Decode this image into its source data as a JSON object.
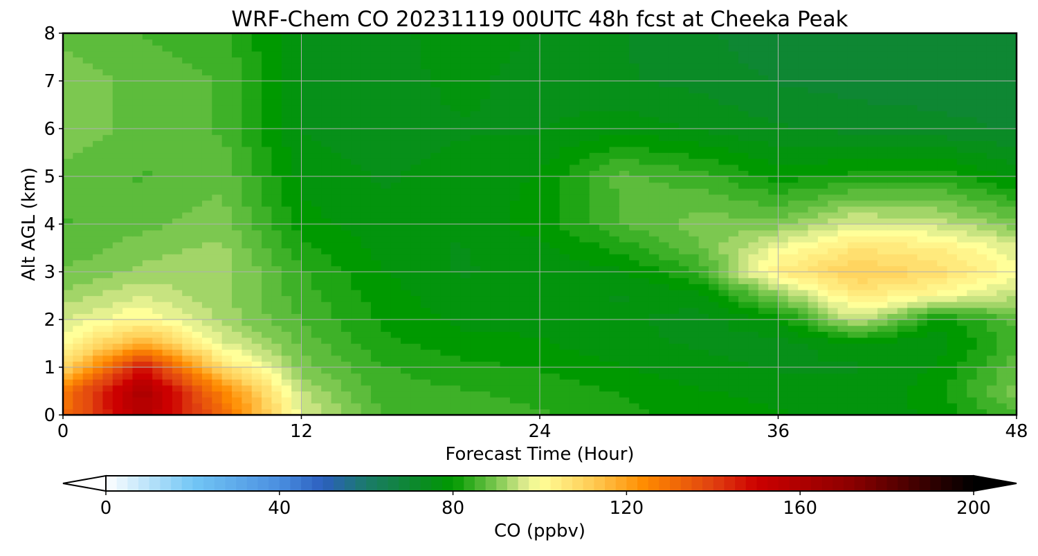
{
  "chart_data": {
    "type": "heatmap",
    "title": "WRF-Chem CO  20231119 00UTC 48h fcst at Cheeka Peak",
    "xlabel": "Forecast Time (Hour)",
    "ylabel": "Alt AGL (km)",
    "xlim": [
      0,
      48
    ],
    "ylim": [
      0,
      8
    ],
    "x_ticks": [
      0,
      12,
      24,
      36,
      48
    ],
    "y_ticks": [
      0,
      1,
      2,
      3,
      4,
      5,
      6,
      7,
      8
    ],
    "grid": true,
    "colorbar": {
      "label": "CO  (ppbv)",
      "min": 0,
      "max": 200,
      "ticks": [
        0,
        40,
        80,
        120,
        160,
        200
      ],
      "extend": "both",
      "orientation": "horizontal",
      "stops": [
        {
          "value": 0,
          "color": "#ffffff"
        },
        {
          "value": 20,
          "color": "#73c6f5"
        },
        {
          "value": 40,
          "color": "#4a8fe0"
        },
        {
          "value": 50,
          "color": "#2c5fbf"
        },
        {
          "value": 60,
          "color": "#1b7a6a"
        },
        {
          "value": 72,
          "color": "#0b8a28"
        },
        {
          "value": 80,
          "color": "#009900"
        },
        {
          "value": 90,
          "color": "#7cc850"
        },
        {
          "value": 96,
          "color": "#d6e88a"
        },
        {
          "value": 100,
          "color": "#ffff99"
        },
        {
          "value": 112,
          "color": "#ffcc55"
        },
        {
          "value": 124,
          "color": "#ff8c00"
        },
        {
          "value": 140,
          "color": "#e04010"
        },
        {
          "value": 150,
          "color": "#cc0000"
        },
        {
          "value": 172,
          "color": "#8b0000"
        },
        {
          "value": 200,
          "color": "#000000"
        }
      ]
    },
    "x": [
      0,
      4,
      8,
      12,
      16,
      20,
      24,
      28,
      32,
      36,
      40,
      44,
      48
    ],
    "y": [
      0,
      0.5,
      1,
      1.5,
      2,
      2.5,
      3,
      3.5,
      4,
      5,
      6,
      7,
      8
    ],
    "z": [
      [
        130,
        158,
        132,
        97,
        86,
        85,
        84,
        82,
        80,
        79,
        78,
        79,
        86
      ],
      [
        128,
        162,
        126,
        94,
        85,
        84,
        83,
        81,
        79,
        78,
        77,
        80,
        90
      ],
      [
        108,
        148,
        108,
        90,
        84,
        82,
        81,
        79,
        77,
        76,
        76,
        79,
        88
      ],
      [
        100,
        118,
        97,
        88,
        82,
        80,
        79,
        77,
        76,
        75,
        78,
        77,
        85
      ],
      [
        96,
        102,
        93,
        86,
        81,
        78,
        78,
        77,
        75,
        79,
        96,
        80,
        87
      ],
      [
        92,
        96,
        92,
        85,
        80,
        77,
        77,
        76,
        78,
        90,
        105,
        100,
        94
      ],
      [
        89,
        92,
        93,
        84,
        79,
        76,
        77,
        78,
        84,
        104,
        112,
        108,
        100
      ],
      [
        87,
        90,
        92,
        82,
        78,
        76,
        78,
        82,
        88,
        99,
        106,
        104,
        97
      ],
      [
        86,
        88,
        90,
        80,
        77,
        77,
        80,
        86,
        90,
        90,
        97,
        95,
        90
      ],
      [
        88,
        86,
        88,
        78,
        76,
        77,
        79,
        87,
        85,
        80,
        82,
        83,
        78
      ],
      [
        90,
        88,
        86,
        76,
        75,
        76,
        76,
        78,
        76,
        74,
        73,
        72,
        71
      ],
      [
        90,
        88,
        86,
        76,
        75,
        77,
        75,
        74,
        73,
        71,
        70,
        70,
        70
      ],
      [
        88,
        86,
        85,
        76,
        75,
        78,
        76,
        74,
        72,
        69,
        70,
        70,
        70
      ]
    ]
  }
}
